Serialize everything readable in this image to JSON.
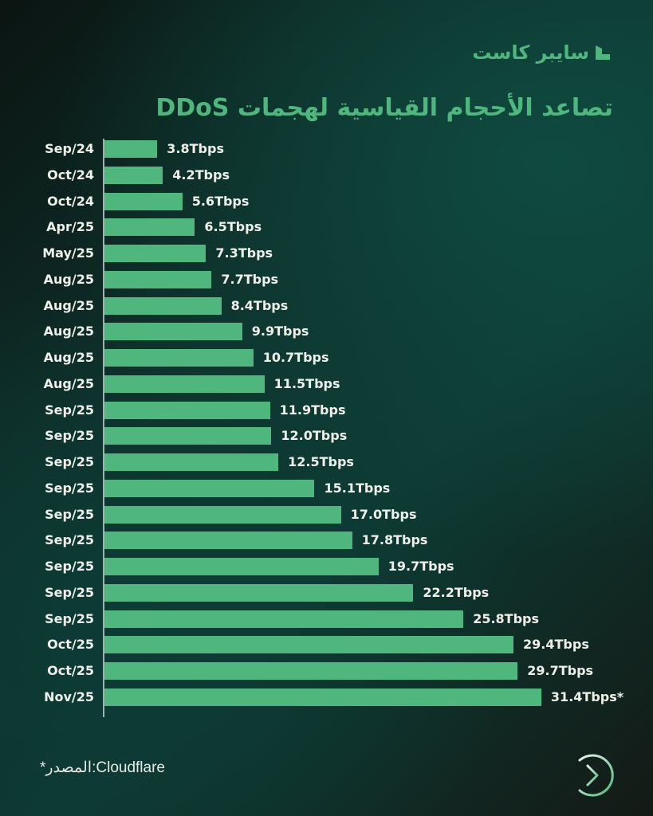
{
  "brand": {
    "name": "سايبر كاست",
    "logo_icon": "stepped-chevron-logo-icon",
    "color": "#4fb77d"
  },
  "title": "تصاعد الأحجام القياسية لهجمات DDoS",
  "footer": {
    "source_text": "*المصدر:Cloudflare",
    "next_icon": "arrow-right-circle-icon"
  },
  "colors": {
    "bar": "#4fb77d",
    "title": "#4fb77d",
    "text": "#f0f0ea",
    "background_dark": "#0b1512",
    "background_teal": "#0d3a33"
  },
  "chart_data": {
    "type": "bar",
    "orientation": "horizontal",
    "title": "تصاعد الأحجام القياسية لهجمات DDoS",
    "xlabel": "",
    "ylabel": "",
    "unit": "Tbps",
    "grid": false,
    "legend": null,
    "xlim": [
      0,
      32
    ],
    "categories": [
      "Sep/24",
      "Oct/24",
      "Oct/24",
      "Apr/25",
      "May/25",
      "Aug/25",
      "Aug/25",
      "Aug/25",
      "Aug/25",
      "Aug/25",
      "Sep/25",
      "Sep/25",
      "Sep/25",
      "Sep/25",
      "Sep/25",
      "Sep/25",
      "Sep/25",
      "Sep/25",
      "Sep/25",
      "Oct/25",
      "Oct/25",
      "Nov/25"
    ],
    "values": [
      3.8,
      4.2,
      5.6,
      6.5,
      7.3,
      7.7,
      8.4,
      9.9,
      10.7,
      11.5,
      11.9,
      12.0,
      12.5,
      15.1,
      17.0,
      17.8,
      19.7,
      22.2,
      25.8,
      29.4,
      29.7,
      31.4
    ],
    "labels": [
      "3.8Tbps",
      "4.2Tbps",
      "5.6Tbps",
      "6.5Tbps",
      "7.3Tbps",
      "7.7Tbps",
      "8.4Tbps",
      "9.9Tbps",
      "10.7Tbps",
      "11.5Tbps",
      "11.9Tbps",
      "12.0Tbps",
      "12.5Tbps",
      "15.1Tbps",
      "17.0Tbps",
      "17.8Tbps",
      "19.7Tbps",
      "22.2Tbps",
      "25.8Tbps",
      "29.4Tbps",
      "29.7Tbps",
      "31.4Tbps*"
    ],
    "annotations": [
      "* Source: Cloudflare (31.4Tbps*)"
    ],
    "source": "Cloudflare"
  }
}
